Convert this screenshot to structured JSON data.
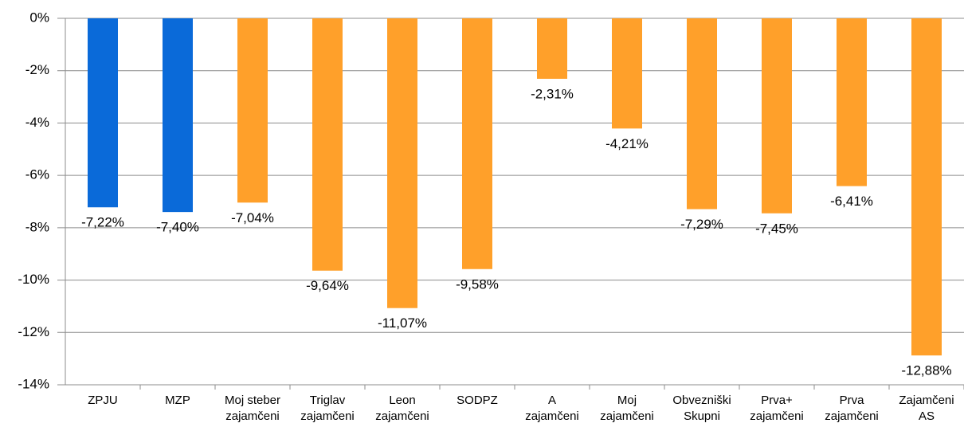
{
  "chart_data": {
    "type": "bar",
    "categories": [
      "ZPJU",
      "MZP",
      "Moj steber\nzajamčeni",
      "Triglav\nzajamčeni",
      "Leon\nzajamčeni",
      "SODPZ",
      "A\nzajamčeni",
      "Moj\nzajamčeni",
      "Obvezniški\nSkupni",
      "Prva+\nzajamčeni",
      "Prva\nzajamčeni",
      "Zajamčeni\nAS"
    ],
    "values": [
      -7.22,
      -7.4,
      -7.04,
      -9.64,
      -11.07,
      -9.58,
      -2.31,
      -4.21,
      -7.29,
      -7.45,
      -6.41,
      -12.88
    ],
    "value_labels": [
      "-7,22%",
      "-7,40%",
      "-7,04%",
      "-9,64%",
      "-11,07%",
      "-9,58%",
      "-2,31%",
      "-4,21%",
      "-7,29%",
      "-7,45%",
      "-6,41%",
      "-12,88%"
    ],
    "colors": [
      "#0a6ad9",
      "#0a6ad9",
      "#ffa02a",
      "#ffa02a",
      "#ffa02a",
      "#ffa02a",
      "#ffa02a",
      "#ffa02a",
      "#ffa02a",
      "#ffa02a",
      "#ffa02a",
      "#ffa02a"
    ],
    "ylim": [
      -14,
      0
    ],
    "yticks": [
      {
        "value": 0,
        "label": "0%"
      },
      {
        "value": -2,
        "label": "-2%"
      },
      {
        "value": -4,
        "label": "-4%"
      },
      {
        "value": -6,
        "label": "-6%"
      },
      {
        "value": -8,
        "label": "-8%"
      },
      {
        "value": -10,
        "label": "-10%"
      },
      {
        "value": -12,
        "label": "-12%"
      },
      {
        "value": -14,
        "label": "-14%"
      }
    ],
    "grid": true
  }
}
